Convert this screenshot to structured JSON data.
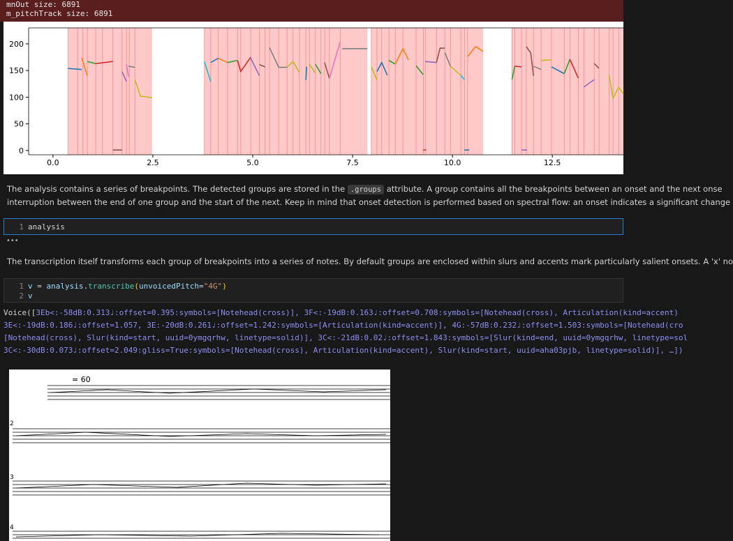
{
  "header": {
    "lines": [
      "mnOut size: 6891",
      "m_pitchTrack size: 6891"
    ]
  },
  "chart": {
    "type": "line",
    "xlim": [
      -0.61,
      14.28
    ],
    "ylim": [
      -8,
      230
    ],
    "xticks": [
      {
        "value": 0,
        "label": "0.0"
      },
      2.5,
      {
        "value": 5,
        "label": "5.0"
      },
      7.5,
      {
        "value": 10,
        "label": "10.0"
      },
      12.5
    ],
    "yticks": [
      0,
      50,
      100,
      150,
      200
    ],
    "regions": [
      [
        0.38,
        2.48
      ],
      [
        3.79,
        7.87
      ],
      [
        7.97,
        10.77
      ],
      [
        11.49,
        14.28
      ]
    ],
    "region_color": "#ffc9c9",
    "onsets": [
      0.38,
      0.62,
      0.75,
      0.86,
      1.07,
      1.24,
      1.5,
      1.73,
      1.84,
      1.91,
      2.05,
      3.79,
      3.95,
      4.14,
      4.37,
      4.62,
      4.7,
      4.95,
      5.17,
      5.31,
      5.42,
      5.65,
      5.86,
      6.01,
      6.17,
      6.33,
      6.42,
      6.57,
      6.71,
      6.8,
      6.92,
      7.19,
      7.97,
      8.11,
      8.23,
      8.41,
      8.57,
      8.76,
      9.09,
      9.27,
      9.32,
      9.6,
      9.81,
      9.95,
      10.21,
      10.3,
      10.38,
      11.49,
      11.56,
      11.73,
      11.85,
      12.03,
      12.22,
      12.48,
      12.8,
      12.94,
      13.15,
      13.29,
      13.55,
      13.67,
      13.92,
      14.02,
      14.16
    ],
    "onset_color": "#f08a8a",
    "series": [
      {
        "color": "#1f77b4",
        "x": [
          0.37,
          0.72
        ],
        "y": [
          154,
          152
        ]
      },
      {
        "color": "#ff7f0e",
        "x": [
          0.72,
          0.86
        ],
        "y": [
          174,
          140
        ]
      },
      {
        "color": "#2ca02c",
        "x": [
          0.86,
          1.07
        ],
        "y": [
          167,
          163
        ]
      },
      {
        "color": "#d62728",
        "x": [
          1.07,
          1.5
        ],
        "y": [
          163,
          167
        ]
      },
      {
        "color": "#8c564b",
        "x": [
          1.5,
          1.73
        ],
        "y": [
          1,
          1
        ]
      },
      {
        "color": "#9467bd",
        "x": [
          1.73,
          1.84
        ],
        "y": [
          148,
          129
        ]
      },
      {
        "color": "#e377c2",
        "x": [
          1.84,
          1.89
        ],
        "y": [
          162,
          139
        ]
      },
      {
        "color": "#7f7f7f",
        "x": [
          1.89,
          2.05
        ],
        "y": [
          158,
          156
        ]
      },
      {
        "color": "#bcbd22",
        "x": [
          2.05,
          2.19,
          2.48
        ],
        "y": [
          133,
          102,
          99
        ]
      },
      {
        "color": "#17becf",
        "x": [
          3.79,
          3.95
        ],
        "y": [
          167,
          129
        ]
      },
      {
        "color": "#1f77b4",
        "x": [
          3.95,
          4.14
        ],
        "y": [
          165,
          173
        ]
      },
      {
        "color": "#ff7f0e",
        "x": [
          4.14,
          4.37
        ],
        "y": [
          173,
          165
        ]
      },
      {
        "color": "#2ca02c",
        "x": [
          4.37,
          4.62
        ],
        "y": [
          165,
          169
        ]
      },
      {
        "color": "#d62728",
        "x": [
          4.62,
          4.7,
          4.95
        ],
        "y": [
          169,
          148,
          175
        ]
      },
      {
        "color": "#9467bd",
        "x": [
          4.95,
          5.17
        ],
        "y": [
          173,
          140
        ]
      },
      {
        "color": "#8c564b",
        "x": [
          5.17,
          5.31
        ],
        "y": [
          161,
          157
        ]
      },
      {
        "color": "#7f7f7f",
        "x": [
          5.42,
          5.65,
          5.86
        ],
        "y": [
          193,
          156,
          156
        ]
      },
      {
        "color": "#bcbd22",
        "x": [
          5.86,
          6.01,
          6.17
        ],
        "y": [
          156,
          167,
          146
        ]
      },
      {
        "color": "#1f77b4",
        "x": [
          6.33,
          6.35
        ],
        "y": [
          132,
          157
        ]
      },
      {
        "color": "#bcbd22",
        "x": [
          6.42,
          6.57
        ],
        "y": [
          162,
          145
        ]
      },
      {
        "color": "#2ca02c",
        "x": [
          6.57,
          6.71
        ],
        "y": [
          162,
          144
        ]
      },
      {
        "color": "#8c564b",
        "x": [
          6.8,
          6.92
        ],
        "y": [
          165,
          135
        ]
      },
      {
        "color": "#e377c2",
        "x": [
          6.92,
          7.19
        ],
        "y": [
          135,
          204
        ]
      },
      {
        "color": "#7f7f7f",
        "x": [
          7.24,
          7.87
        ],
        "y": [
          191,
          191
        ]
      },
      {
        "color": "#bcbd22",
        "x": [
          7.97,
          8.11
        ],
        "y": [
          157,
          132
        ]
      },
      {
        "color": "#1f77b4",
        "x": [
          8.11,
          8.23,
          8.37
        ],
        "y": [
          148,
          165,
          141
        ]
      },
      {
        "color": "#2ca02c",
        "x": [
          8.41,
          8.57
        ],
        "y": [
          169,
          162
        ]
      },
      {
        "color": "#ff7f0e",
        "x": [
          8.57,
          8.76,
          8.9
        ],
        "y": [
          162,
          191,
          170
        ]
      },
      {
        "color": "#2ca02c",
        "x": [
          9.09,
          9.27
        ],
        "y": [
          159,
          142
        ]
      },
      {
        "color": "#d62728",
        "x": [
          9.27,
          9.34
        ],
        "y": [
          1,
          1
        ]
      },
      {
        "color": "#9467bd",
        "x": [
          9.32,
          9.6
        ],
        "y": [
          167,
          165
        ]
      },
      {
        "color": "#8c564b",
        "x": [
          9.6,
          9.69,
          9.81
        ],
        "y": [
          165,
          192,
          192
        ]
      },
      {
        "color": "#7f7f7f",
        "x": [
          9.81,
          9.95
        ],
        "y": [
          184,
          158
        ]
      },
      {
        "color": "#bcbd22",
        "x": [
          9.95,
          10.21
        ],
        "y": [
          158,
          141
        ]
      },
      {
        "color": "#17becf",
        "x": [
          10.21,
          10.3
        ],
        "y": [
          141,
          133
        ]
      },
      {
        "color": "#1f77b4",
        "x": [
          10.3,
          10.42
        ],
        "y": [
          1,
          1
        ]
      },
      {
        "color": "#ff7f0e",
        "x": [
          10.38,
          10.58,
          10.77
        ],
        "y": [
          176,
          195,
          186
        ]
      },
      {
        "color": "#2ca02c",
        "x": [
          11.49,
          11.56
        ],
        "y": [
          133,
          158
        ]
      },
      {
        "color": "#d62728",
        "x": [
          11.56,
          11.73
        ],
        "y": [
          158,
          157
        ]
      },
      {
        "color": "#9467bd",
        "x": [
          11.73,
          11.87
        ],
        "y": [
          1,
          1
        ]
      },
      {
        "color": "#8c564b",
        "x": [
          11.85,
          11.96,
          12.03
        ],
        "y": [
          195,
          183,
          140
        ]
      },
      {
        "color": "#7f7f7f",
        "x": [
          12.03,
          12.22
        ],
        "y": [
          158,
          152
        ]
      },
      {
        "color": "#bcbd22",
        "x": [
          12.22,
          12.48
        ],
        "y": [
          169,
          170
        ]
      },
      {
        "color": "#1f77b4",
        "x": [
          12.48,
          12.8
        ],
        "y": [
          157,
          144
        ]
      },
      {
        "color": "#2ca02c",
        "x": [
          12.8,
          12.94
        ],
        "y": [
          144,
          171
        ]
      },
      {
        "color": "#d62728",
        "x": [
          12.94,
          13.15
        ],
        "y": [
          171,
          136
        ]
      },
      {
        "color": "#9467bd",
        "x": [
          13.29,
          13.55
        ],
        "y": [
          119,
          133
        ]
      },
      {
        "color": "#8c564b",
        "x": [
          13.55,
          13.67
        ],
        "y": [
          163,
          154
        ]
      },
      {
        "color": "#bcbd22",
        "x": [
          13.92,
          14.02,
          14.16,
          14.28
        ],
        "y": [
          142,
          98,
          119,
          106
        ]
      }
    ]
  },
  "markdown1": {
    "before": "The analysis contains a series of breakpoints. The detected groups are stored in the ",
    "code": ".groups",
    "after": " attribute. A group contains all the breakpoints between an onset and the next onse",
    "line2": "interruption between the end of one group and the start of the next. Keep in mind that onset detection is performed based on spectral flow: an onset indicates a significant change"
  },
  "cell1": {
    "line_numbers": [
      "1"
    ],
    "code": "analysis"
  },
  "ellipsis": "•••",
  "markdown2": "The transcription itself transforms each group of breakpoints into a series of notes. By default groups are enclosed within slurs and accents mark particularly salient onsets. A 'x' no",
  "cell2": {
    "line_numbers": [
      "1",
      "2"
    ],
    "tokens": [
      "v",
      " = ",
      "analysis",
      ".",
      "transcribe",
      "(",
      "unvoicedPitch",
      "=",
      "\"4G\"",
      ")"
    ],
    "line2": "v"
  },
  "output": {
    "prefix": "Voice([",
    "lines": [
      "3Eb<:-58dB:0.313♩:offset=0.395:symbols=[Notehead(cross)], 3F<:-19dB:0.163♩:offset=0.708:symbols=[Notehead(cross), Articulation(kind=accent)",
      "3E<:-19dB:0.186♩:offset=1.057, 3E:-20dB:0.261♩:offset=1.242:symbols=[Articulation(kind=accent)], 4G:-57dB:0.232♩:offset=1.503:symbols=[Notehead(cro",
      "[Notehead(cross), Slur(kind=start, uuid=0ymgqrhw, linetype=solid)], 3C<:-21dB:0.02♩:offset=1.843:symbols=[Slur(kind=end, uuid=0ymgqrhw, linetype=sol",
      "3C<:-30dB:0.073♩:offset=2.049:gliss=True:symbols=[Notehead(cross), Articulation(kind=accent), Slur(kind=start, uuid=aha03pjb, linetype=solid)], …])"
    ]
  },
  "score": {
    "tempo": "= 60",
    "system_numbers": [
      "2",
      "3",
      "4"
    ]
  }
}
